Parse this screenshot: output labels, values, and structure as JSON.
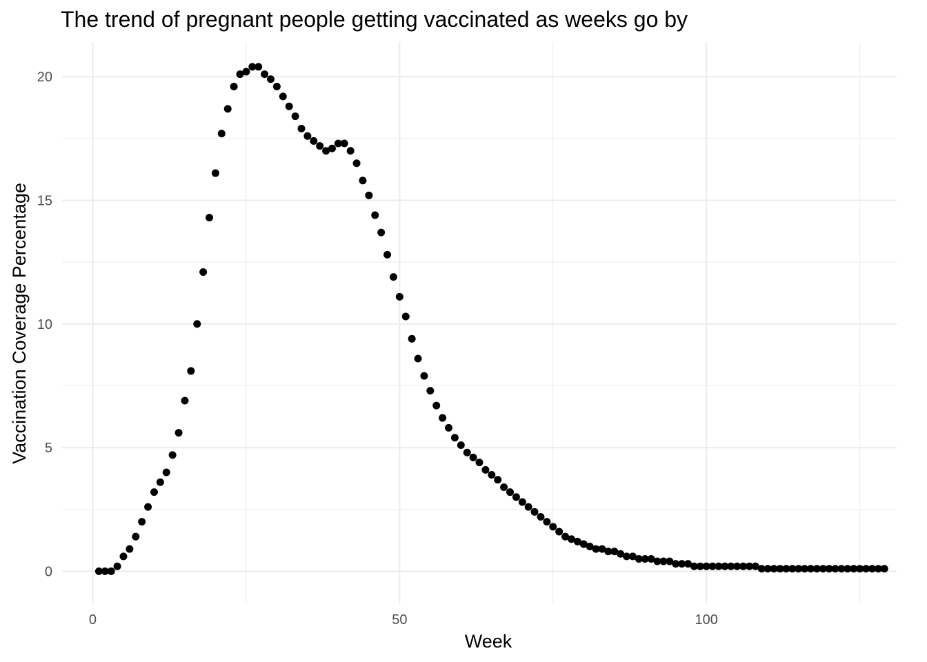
{
  "chart_data": {
    "type": "scatter",
    "title": "The trend of pregnant people getting vaccinated as weeks go by",
    "xlabel": "Week",
    "ylabel": "Vaccination Coverage Percentage",
    "xlim": [
      -5,
      131
    ],
    "ylim": [
      -1.3,
      21.4
    ],
    "x_ticks": [
      0,
      50,
      100
    ],
    "x_tick_labels": [
      "0",
      "50",
      "100"
    ],
    "y_ticks": [
      0,
      5,
      10,
      15,
      20
    ],
    "y_tick_labels": [
      "0",
      "5",
      "10",
      "15",
      "20"
    ],
    "grid": true,
    "legend": "none",
    "point_color": "#000000",
    "series": [
      {
        "x": [
          1,
          2,
          3,
          4,
          5,
          6,
          7,
          8,
          9,
          10,
          11,
          12,
          13,
          14,
          15,
          16,
          17,
          18,
          19,
          20,
          21,
          22,
          23,
          24,
          25,
          26,
          27,
          28,
          29,
          30,
          31,
          32,
          33,
          34,
          35,
          36,
          37,
          38,
          39,
          40,
          41,
          42,
          43,
          44,
          45,
          46,
          47,
          48,
          49,
          50,
          51,
          52,
          53,
          54,
          55,
          56,
          57,
          58,
          59,
          60,
          61,
          62,
          63,
          64,
          65,
          66,
          67,
          68,
          69,
          70,
          71,
          72,
          73,
          74,
          75,
          76,
          77,
          78,
          79,
          80,
          81,
          82,
          83,
          84,
          85,
          86,
          87,
          88,
          89,
          90,
          91,
          92,
          93,
          94,
          95,
          96,
          97,
          98,
          99,
          100,
          101,
          102,
          103,
          104,
          105,
          106,
          107,
          108,
          109,
          110,
          111,
          112,
          113,
          114,
          115,
          116,
          117,
          118,
          119,
          120,
          121,
          122,
          123,
          124,
          125,
          126,
          127,
          128,
          129
        ],
        "y": [
          0,
          0,
          0,
          0.2,
          0.6,
          0.9,
          1.4,
          2.0,
          2.6,
          3.2,
          3.6,
          4.0,
          4.7,
          5.6,
          6.9,
          8.1,
          10.0,
          12.1,
          14.3,
          16.1,
          17.7,
          18.7,
          19.6,
          20.1,
          20.2,
          20.4,
          20.4,
          20.1,
          19.9,
          19.6,
          19.2,
          18.8,
          18.4,
          17.9,
          17.6,
          17.4,
          17.2,
          17.0,
          17.1,
          17.3,
          17.3,
          17.0,
          16.5,
          15.8,
          15.2,
          14.4,
          13.7,
          12.8,
          11.9,
          11.1,
          10.3,
          9.4,
          8.6,
          7.9,
          7.3,
          6.7,
          6.2,
          5.8,
          5.4,
          5.1,
          4.8,
          4.6,
          4.4,
          4.1,
          3.9,
          3.7,
          3.4,
          3.2,
          3.0,
          2.8,
          2.6,
          2.4,
          2.2,
          2.0,
          1.8,
          1.6,
          1.4,
          1.3,
          1.2,
          1.1,
          1.0,
          0.9,
          0.9,
          0.8,
          0.8,
          0.7,
          0.6,
          0.6,
          0.5,
          0.5,
          0.5,
          0.4,
          0.4,
          0.4,
          0.3,
          0.3,
          0.3,
          0.2,
          0.2,
          0.2,
          0.2,
          0.2,
          0.2,
          0.2,
          0.2,
          0.2,
          0.2,
          0.2,
          0.1,
          0.1,
          0.1,
          0.1,
          0.1,
          0.1,
          0.1,
          0.1,
          0.1,
          0.1,
          0.1,
          0.1,
          0.1,
          0.1,
          0.1,
          0.1,
          0.1,
          0.1,
          0.1,
          0.1,
          0.1
        ]
      }
    ]
  }
}
